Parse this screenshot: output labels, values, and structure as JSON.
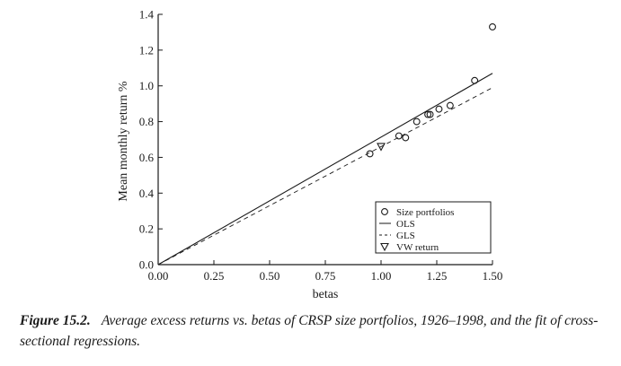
{
  "chart_data": {
    "type": "scatter",
    "xlabel": "betas",
    "ylabel": "Mean monthly return %",
    "xlim": [
      0,
      1.5
    ],
    "ylim": [
      0,
      1.4
    ],
    "xticks": [
      0.0,
      0.25,
      0.5,
      0.75,
      1.0,
      1.25,
      1.5
    ],
    "xtick_labels": [
      "0.00",
      "0.25",
      "0.50",
      "0.75",
      "1.00",
      "1.25",
      "1.50"
    ],
    "yticks": [
      0.0,
      0.2,
      0.4,
      0.6,
      0.8,
      1.0,
      1.2,
      1.4
    ],
    "ytick_labels": [
      "0.0",
      "0.2",
      "0.4",
      "0.6",
      "0.8",
      "1.0",
      "1.2",
      "1.4"
    ],
    "grid": false,
    "legend_position": "bottom-right",
    "series": [
      {
        "name": "Size portfolios",
        "kind": "points",
        "marker": "circle",
        "x": [
          0.95,
          1.08,
          1.11,
          1.16,
          1.21,
          1.22,
          1.26,
          1.31,
          1.42,
          1.5
        ],
        "y": [
          0.62,
          0.72,
          0.71,
          0.8,
          0.84,
          0.84,
          0.87,
          0.89,
          1.03,
          1.33
        ]
      },
      {
        "name": "OLS",
        "kind": "line",
        "style": "solid",
        "x": [
          0,
          1.5
        ],
        "y": [
          0,
          1.07
        ]
      },
      {
        "name": "GLS",
        "kind": "line",
        "style": "dashed",
        "x": [
          0,
          1.5
        ],
        "y": [
          0,
          0.99
        ]
      },
      {
        "name": "VW return",
        "kind": "points",
        "marker": "triangle-down",
        "x": [
          1.0
        ],
        "y": [
          0.66
        ]
      }
    ]
  },
  "caption": {
    "label": "Figure 15.2.",
    "text": "Average excess returns vs. betas of CRSP size portfolios, 1926–1998, and the fit of cross-sectional regressions."
  }
}
